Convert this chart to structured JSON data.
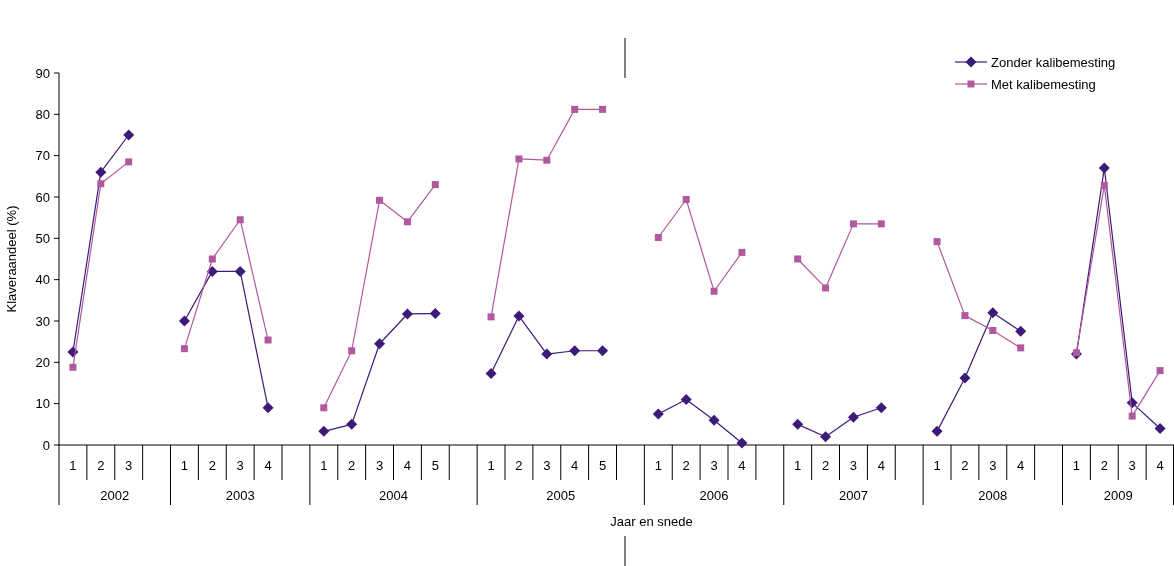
{
  "chart_data": {
    "type": "line",
    "xlabel": "Jaar en snede",
    "ylabel": "Klaveraandeel (%)",
    "categories": [
      "1",
      "2",
      "3",
      null,
      "1",
      "2",
      "3",
      "4",
      null,
      "1",
      "2",
      "3",
      "4",
      "5",
      null,
      "1",
      "2",
      "3",
      "4",
      "5",
      null,
      "1",
      "2",
      "3",
      "4",
      null,
      "1",
      "2",
      "3",
      "4",
      null,
      "1",
      "2",
      "3",
      "4",
      null,
      "1",
      "2",
      "3",
      "4"
    ],
    "annotations": [
      "2002",
      "2003",
      "2004",
      "2005",
      "2006",
      "2007",
      "2008",
      "2009"
    ],
    "series": [
      {
        "name": "Zonder kalibemesting",
        "color": "#3d1a78",
        "marker": "diamond",
        "values": [
          22.5,
          66,
          75,
          null,
          30,
          42,
          42,
          9,
          null,
          3.3,
          5,
          24.5,
          31.7,
          31.8,
          null,
          17.3,
          31.2,
          22,
          22.8,
          22.8,
          null,
          7.5,
          11,
          6,
          0.5,
          null,
          5,
          2,
          6.7,
          9,
          null,
          3.3,
          16.2,
          32,
          27.5,
          null,
          22,
          67,
          10.2,
          4
        ]
      },
      {
        "name": "Met kalibemesting",
        "color": "#b0599f",
        "marker": "square",
        "values": [
          18.8,
          63.2,
          68.5,
          null,
          23.3,
          45,
          54.5,
          25.4,
          null,
          9,
          22.8,
          59.2,
          54,
          63,
          null,
          31,
          69.2,
          68.9,
          81.2,
          81.2,
          null,
          50.2,
          59.4,
          37.2,
          46.6,
          null,
          45,
          38,
          53.5,
          53.5,
          null,
          49.2,
          31.3,
          27.7,
          23.5,
          null,
          22.3,
          62.8,
          7,
          18
        ]
      }
    ],
    "ylim": [
      0,
      90
    ],
    "yticks": [
      0,
      10,
      20,
      30,
      40,
      50,
      60,
      70,
      80,
      90
    ],
    "legend": "top right",
    "line_style": "solid"
  }
}
